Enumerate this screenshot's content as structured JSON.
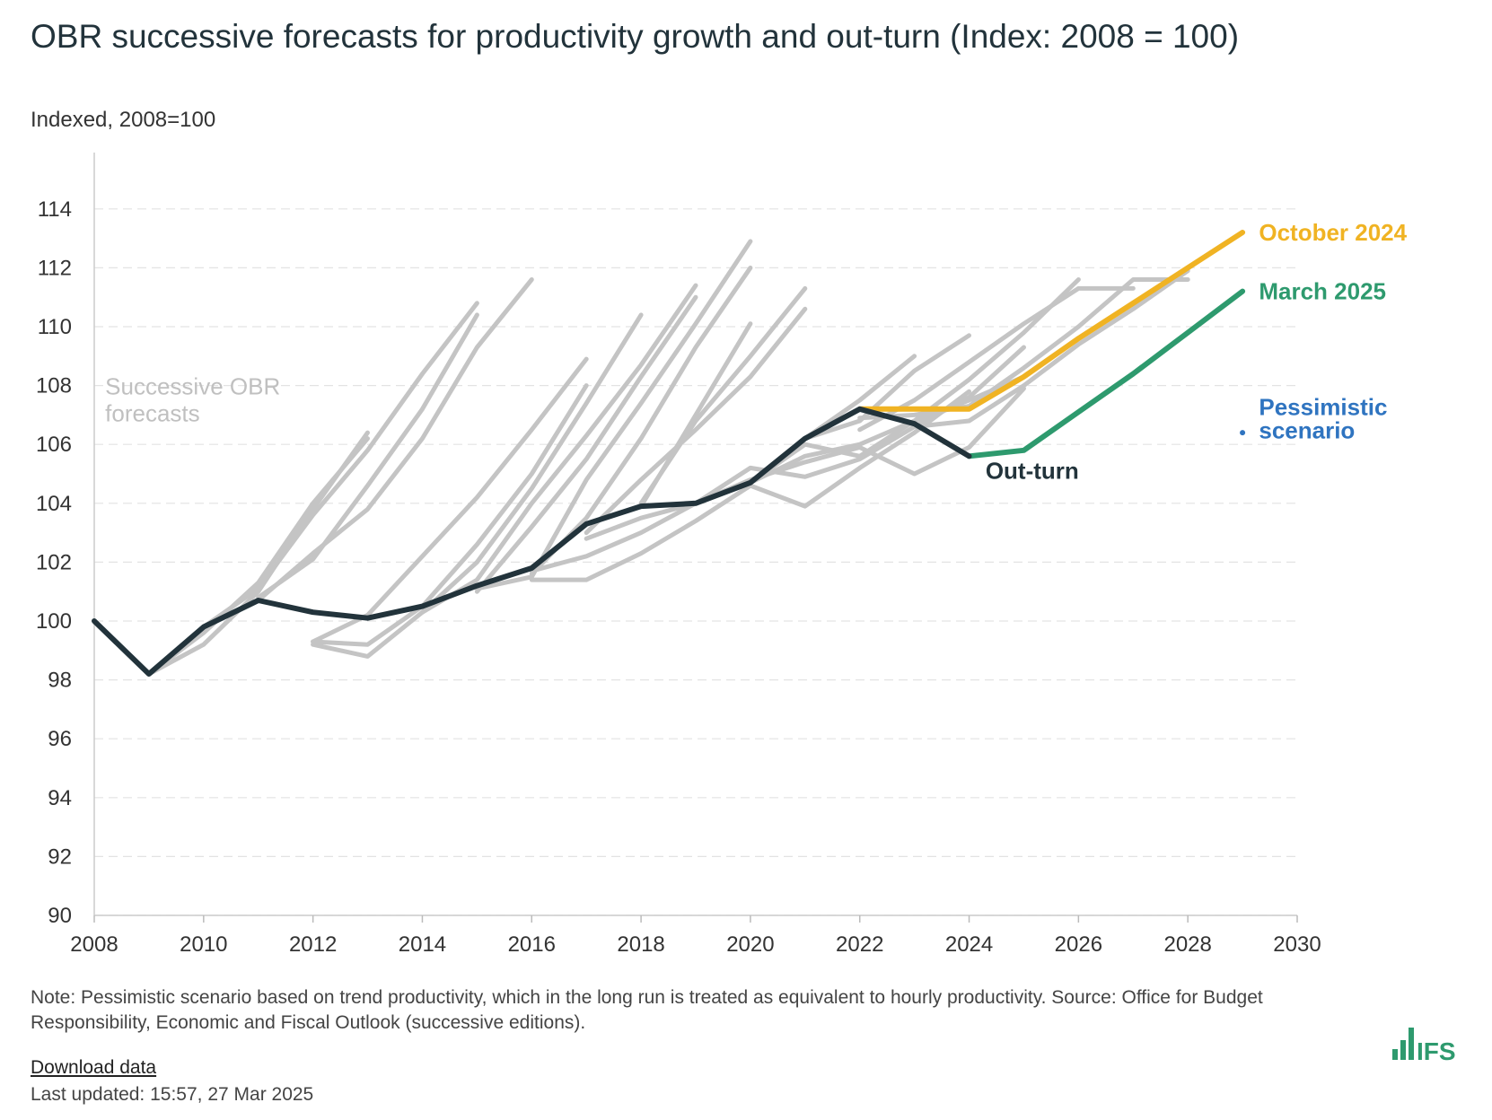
{
  "header": {
    "title": "OBR successive forecasts for productivity growth and out-turn (Index: 2008 = 100)",
    "subtitle": "Indexed, 2008=100"
  },
  "footer": {
    "note": "Note: Pessimistic scenario based on trend productivity, which in the long run is treated as equivalent to hourly productivity. Source: Office for Budget Responsibility, Economic and Fiscal Outlook (successive editions).",
    "download_label": "Download data",
    "last_updated": "Last updated: 15:57, 27 Mar 2025"
  },
  "logo": {
    "text": "IFS",
    "color": "#2e9a6e"
  },
  "chart_data": {
    "type": "line",
    "xlim": [
      2008,
      2030
    ],
    "ylim": [
      90,
      115
    ],
    "x_ticks": [
      2008,
      2010,
      2012,
      2014,
      2016,
      2018,
      2020,
      2022,
      2024,
      2026,
      2028,
      2030
    ],
    "y_ticks": [
      90,
      92,
      94,
      96,
      98,
      100,
      102,
      104,
      106,
      108,
      110,
      112,
      114
    ],
    "grid": true,
    "annotations": [
      {
        "text": "Successive OBR forecasts",
        "x": 2008.2,
        "y": 107.7,
        "color": "#c0c0c0"
      }
    ],
    "forecast_color": "#c4c4c4",
    "forecasts": [
      [
        [
          2009,
          98.2
        ],
        [
          2010,
          99.2
        ],
        [
          2011,
          101.0
        ],
        [
          2012,
          103.8
        ],
        [
          2013,
          106.4
        ]
      ],
      [
        [
          2009,
          98.2
        ],
        [
          2010,
          99.6
        ],
        [
          2011,
          101.3
        ],
        [
          2012,
          104.0
        ],
        [
          2013,
          106.2
        ]
      ],
      [
        [
          2010,
          99.8
        ],
        [
          2011,
          101.1
        ],
        [
          2012,
          103.6
        ],
        [
          2013,
          105.8
        ],
        [
          2014,
          108.4
        ],
        [
          2015,
          110.8
        ]
      ],
      [
        [
          2011,
          100.8
        ],
        [
          2012,
          102.1
        ],
        [
          2013,
          104.6
        ],
        [
          2014,
          107.2
        ],
        [
          2015,
          110.4
        ]
      ],
      [
        [
          2011,
          100.7
        ],
        [
          2012,
          102.3
        ],
        [
          2013,
          103.8
        ],
        [
          2014,
          106.2
        ],
        [
          2015,
          109.3
        ],
        [
          2016,
          111.6
        ]
      ],
      [
        [
          2012,
          99.2
        ],
        [
          2013,
          98.8
        ],
        [
          2014,
          100.3
        ],
        [
          2015,
          102.0
        ],
        [
          2016,
          104.5
        ],
        [
          2017,
          107.4
        ],
        [
          2018,
          110.4
        ]
      ],
      [
        [
          2012,
          99.3
        ],
        [
          2013,
          99.2
        ],
        [
          2014,
          100.5
        ],
        [
          2015,
          102.6
        ],
        [
          2016,
          105.0
        ],
        [
          2017,
          108.0
        ]
      ],
      [
        [
          2012,
          99.3
        ],
        [
          2013,
          100.2
        ],
        [
          2014,
          102.2
        ],
        [
          2015,
          104.2
        ],
        [
          2016,
          106.5
        ],
        [
          2017,
          108.9
        ]
      ],
      [
        [
          2014,
          100.3
        ],
        [
          2015,
          101.4
        ],
        [
          2016,
          104.0
        ],
        [
          2017,
          106.3
        ],
        [
          2018,
          108.7
        ],
        [
          2019,
          111.4
        ]
      ],
      [
        [
          2015,
          101.0
        ],
        [
          2016,
          103.2
        ],
        [
          2017,
          105.5
        ],
        [
          2018,
          108.3
        ],
        [
          2019,
          111.0
        ]
      ],
      [
        [
          2015,
          101.1
        ],
        [
          2016,
          101.5
        ],
        [
          2017,
          104.8
        ],
        [
          2018,
          107.4
        ],
        [
          2019,
          110.1
        ],
        [
          2020,
          112.9
        ]
      ],
      [
        [
          2016,
          101.6
        ],
        [
          2017,
          103.5
        ],
        [
          2018,
          106.2
        ],
        [
          2019,
          109.3
        ],
        [
          2020,
          112.0
        ]
      ],
      [
        [
          2016,
          101.4
        ],
        [
          2017,
          101.4
        ],
        [
          2018,
          102.3
        ],
        [
          2019,
          103.4
        ],
        [
          2020,
          104.6
        ],
        [
          2021,
          103.9
        ],
        [
          2022,
          105.2
        ],
        [
          2023,
          106.4
        ],
        [
          2024,
          107.8
        ]
      ],
      [
        [
          2016,
          101.7
        ],
        [
          2017,
          102.2
        ],
        [
          2018,
          103.0
        ],
        [
          2019,
          104.0
        ],
        [
          2020,
          104.8
        ],
        [
          2021,
          105.4
        ],
        [
          2022,
          105.9
        ],
        [
          2023,
          105.0
        ],
        [
          2024,
          105.9
        ],
        [
          2025,
          107.9
        ]
      ],
      [
        [
          2017,
          102.8
        ],
        [
          2018,
          103.5
        ],
        [
          2019,
          104.0
        ],
        [
          2020,
          105.2
        ],
        [
          2021,
          104.9
        ],
        [
          2022,
          105.5
        ],
        [
          2023,
          106.6
        ],
        [
          2024,
          107.6
        ],
        [
          2025,
          109.3
        ]
      ],
      [
        [
          2017,
          103.0
        ],
        [
          2018,
          104.8
        ],
        [
          2019,
          106.5
        ],
        [
          2020,
          108.3
        ],
        [
          2021,
          110.6
        ]
      ],
      [
        [
          2018,
          104.0
        ],
        [
          2019,
          106.8
        ],
        [
          2020,
          109.0
        ],
        [
          2021,
          111.3
        ]
      ],
      [
        [
          2018,
          103.9
        ],
        [
          2019,
          107.0
        ],
        [
          2020,
          110.1
        ]
      ],
      [
        [
          2020,
          104.7
        ],
        [
          2021,
          106.0
        ],
        [
          2022,
          105.6
        ],
        [
          2023,
          106.8
        ],
        [
          2024,
          108.2
        ],
        [
          2025,
          109.8
        ],
        [
          2026,
          111.6
        ]
      ],
      [
        [
          2020,
          104.7
        ],
        [
          2021,
          105.6
        ],
        [
          2022,
          106.0
        ],
        [
          2023,
          106.8
        ],
        [
          2024,
          107.5
        ],
        [
          2025,
          108.3
        ],
        [
          2026,
          109.6
        ],
        [
          2027,
          110.8
        ],
        [
          2028,
          112.0
        ]
      ],
      [
        [
          2021,
          106.2
        ],
        [
          2022,
          107.5
        ],
        [
          2023,
          109.0
        ]
      ],
      [
        [
          2021,
          106.2
        ],
        [
          2022,
          106.8
        ],
        [
          2023,
          108.5
        ],
        [
          2024,
          109.7
        ]
      ],
      [
        [
          2022,
          106.5
        ],
        [
          2023,
          107.5
        ],
        [
          2024,
          108.8
        ],
        [
          2025,
          110.1
        ],
        [
          2026,
          111.3
        ],
        [
          2027,
          111.3
        ]
      ],
      [
        [
          2022,
          106.9
        ],
        [
          2023,
          107.0
        ],
        [
          2024,
          107.3
        ],
        [
          2025,
          108.6
        ],
        [
          2026,
          110.0
        ],
        [
          2027,
          111.6
        ],
        [
          2028,
          111.6
        ]
      ],
      [
        [
          2023,
          106.6
        ],
        [
          2024,
          106.8
        ],
        [
          2025,
          108.0
        ],
        [
          2026,
          109.4
        ],
        [
          2027,
          110.6
        ],
        [
          2028,
          111.9
        ]
      ]
    ],
    "series": [
      {
        "name": "Out-turn",
        "color": "#22333b",
        "points": [
          [
            2008,
            100.0
          ],
          [
            2009,
            98.2
          ],
          [
            2010,
            99.8
          ],
          [
            2011,
            100.7
          ],
          [
            2012,
            100.3
          ],
          [
            2013,
            100.1
          ],
          [
            2014,
            100.5
          ],
          [
            2015,
            101.2
          ],
          [
            2016,
            101.8
          ],
          [
            2017,
            103.3
          ],
          [
            2018,
            103.9
          ],
          [
            2019,
            104.0
          ],
          [
            2020,
            104.7
          ],
          [
            2021,
            106.2
          ],
          [
            2022,
            107.2
          ],
          [
            2023,
            106.7
          ],
          [
            2024,
            105.6
          ]
        ],
        "label_x": 2024.3,
        "label_y": 105.1
      },
      {
        "name": "October 2024",
        "color": "#f0b323",
        "points": [
          [
            2022,
            107.2
          ],
          [
            2023,
            107.2
          ],
          [
            2024,
            107.2
          ],
          [
            2025,
            108.3
          ],
          [
            2026,
            109.6
          ],
          [
            2027,
            110.8
          ],
          [
            2028,
            112.0
          ],
          [
            2029,
            113.2
          ]
        ],
        "label_x": 2029.3,
        "label_y": 113.2
      },
      {
        "name": "March 2025",
        "color": "#2e9a6e",
        "points": [
          [
            2024,
            105.6
          ],
          [
            2025,
            105.8
          ],
          [
            2026,
            107.1
          ],
          [
            2027,
            108.4
          ],
          [
            2028,
            109.8
          ],
          [
            2029,
            111.2
          ]
        ],
        "label_x": 2029.3,
        "label_y": 111.2
      },
      {
        "name": "Pessimistic scenario",
        "color": "#2f74c0",
        "points": [
          [
            2029,
            106.4
          ]
        ],
        "label_lines": [
          "Pessimistic",
          "scenario"
        ],
        "label_x": 2029.3,
        "label_y": 107.0
      }
    ]
  }
}
